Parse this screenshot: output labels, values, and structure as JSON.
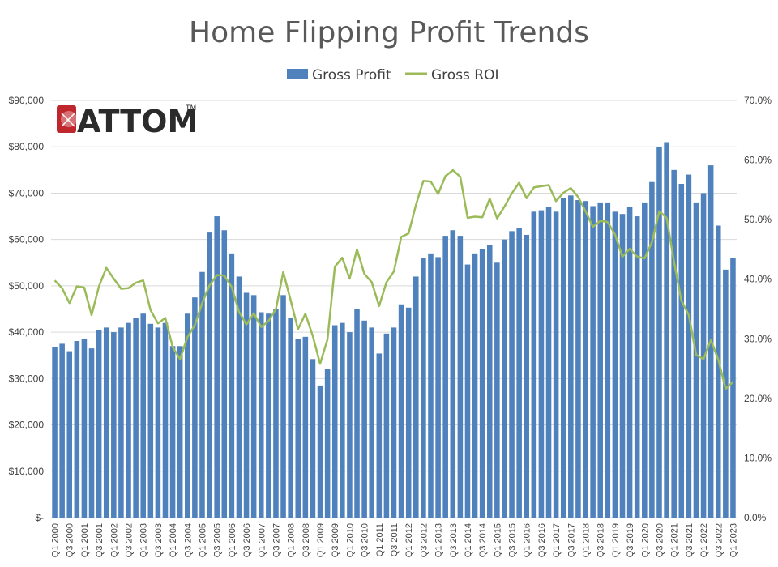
{
  "logo": {
    "text": "ATTOM",
    "tm": "TM",
    "accent_color": "#c0272d"
  },
  "chart_data": {
    "type": "bar",
    "title": "Home Flipping  Profit Trends",
    "legend_position": "top",
    "grid": true,
    "x": [
      "Q1 2000",
      "Q2 2000",
      "Q3 2000",
      "Q4 2000",
      "Q1 2001",
      "Q2 2001",
      "Q3 2001",
      "Q4 2001",
      "Q1 2002",
      "Q2 2002",
      "Q3 2002",
      "Q4 2002",
      "Q1 2003",
      "Q2 2003",
      "Q3 2003",
      "Q4 2003",
      "Q1 2004",
      "Q2 2004",
      "Q3 2004",
      "Q4 2004",
      "Q1 2005",
      "Q2 2005",
      "Q3 2005",
      "Q4 2005",
      "Q1 2006",
      "Q2 2006",
      "Q3 2006",
      "Q4 2006",
      "Q1 2007",
      "Q2 2007",
      "Q3 2007",
      "Q4 2007",
      "Q1 2008",
      "Q2 2008",
      "Q3 2008",
      "Q4 2008",
      "Q1 2009",
      "Q2 2009",
      "Q3 2009",
      "Q4 2009",
      "Q1 2010",
      "Q2 2010",
      "Q3 2010",
      "Q4 2010",
      "Q1 2011",
      "Q2 2011",
      "Q3 2011",
      "Q4 2011",
      "Q1 2012",
      "Q2 2012",
      "Q3 2012",
      "Q4 2012",
      "Q1 2013",
      "Q2 2013",
      "Q3 2013",
      "Q4 2013",
      "Q1 2014",
      "Q2 2014",
      "Q3 2014",
      "Q4 2014",
      "Q1 2015",
      "Q2 2015",
      "Q3 2015",
      "Q4 2015",
      "Q1 2016",
      "Q2 2016",
      "Q3 2016",
      "Q4 2016",
      "Q1 2017",
      "Q2 2017",
      "Q3 2017",
      "Q4 2017",
      "Q1 2018",
      "Q2 2018",
      "Q3 2018",
      "Q4 2018",
      "Q1 2019",
      "Q2 2019",
      "Q3 2019",
      "Q4 2019",
      "Q1 2020",
      "Q2 2020",
      "Q3 2020",
      "Q4 2020",
      "Q1 2021",
      "Q2 2021",
      "Q3 2021",
      "Q4 2021",
      "Q1 2022",
      "Q2 2022",
      "Q3 2022",
      "Q4 2022",
      "Q1 2023"
    ],
    "x_tick_labels": [
      "Q1 2000",
      "Q3 2000",
      "Q1 2001",
      "Q3 2001",
      "Q1 2002",
      "Q3 2002",
      "Q1 2003",
      "Q3 2003",
      "Q1 2004",
      "Q3 2004",
      "Q1 2005",
      "Q3 2005",
      "Q1 2006",
      "Q3 2006",
      "Q1 2007",
      "Q3 2007",
      "Q1 2008",
      "Q3 2008",
      "Q1 2009",
      "Q3 2009",
      "Q1 2010",
      "Q3 2010",
      "Q1 2011",
      "Q3 2011",
      "Q1 2012",
      "Q3 2012",
      "Q1 2013",
      "Q3 2013",
      "Q1 2014",
      "Q3 2014",
      "Q1 2015",
      "Q3 2015",
      "Q1 2016",
      "Q3 2016",
      "Q1 2017",
      "Q3 2017",
      "Q1 2018",
      "Q3 2018",
      "Q1 2019",
      "Q3 2019",
      "Q1 2020",
      "Q3 2020",
      "Q1 2021",
      "Q3 2021",
      "Q1 2022",
      "Q3 2022",
      "Q1 2023"
    ],
    "y_left": {
      "range": [
        0,
        90000
      ],
      "ticks": [
        "$-",
        "$10,000",
        "$20,000",
        "$30,000",
        "$40,000",
        "$50,000",
        "$60,000",
        "$70,000",
        "$80,000",
        "$90,000"
      ]
    },
    "y_right": {
      "range": [
        0,
        70
      ],
      "ticks": [
        "0.0%",
        "10.0%",
        "20.0%",
        "30.0%",
        "40.0%",
        "50.0%",
        "60.0%",
        "70.0%"
      ]
    },
    "series": [
      {
        "name": "Gross Profit",
        "type": "bar",
        "axis": "left",
        "color": "#4f81bd",
        "values": [
          36800,
          37500,
          35900,
          38100,
          38600,
          36500,
          40500,
          41000,
          40000,
          41000,
          42000,
          43000,
          44000,
          41800,
          41000,
          42000,
          37000,
          37000,
          44000,
          47500,
          53000,
          61500,
          65000,
          62000,
          57000,
          52000,
          48500,
          48000,
          44300,
          44000,
          45000,
          48000,
          43000,
          38500,
          39000,
          34200,
          28500,
          32000,
          41500,
          42000,
          40000,
          45000,
          42500,
          41000,
          35400,
          39700,
          41000,
          46000,
          45300,
          52000,
          56000,
          57000,
          56200,
          60800,
          62000,
          60800,
          54600,
          57000,
          58000,
          58800,
          55000,
          60000,
          61800,
          62500,
          61000,
          66000,
          66300,
          67000,
          66000,
          69000,
          69500,
          68500,
          68300,
          67200,
          68000,
          68000,
          66000,
          65500,
          67000,
          65000,
          68000,
          72400,
          80000,
          81000,
          75000,
          72000,
          74000,
          68000,
          70000,
          76000,
          63000,
          53500,
          56000
        ]
      },
      {
        "name": "Gross ROI",
        "type": "line",
        "axis": "right",
        "color": "#9bbb59",
        "values": [
          39.8,
          38.5,
          36.0,
          38.8,
          38.6,
          34.0,
          38.8,
          41.9,
          40.1,
          38.4,
          38.5,
          39.4,
          39.8,
          34.8,
          32.6,
          33.5,
          28.6,
          26.6,
          30.3,
          32.3,
          36.0,
          39.0,
          40.7,
          40.6,
          38.7,
          34.5,
          32.4,
          34.3,
          32.0,
          33.0,
          35.0,
          41.2,
          36.5,
          31.6,
          34.2,
          30.5,
          25.8,
          29.9,
          42.1,
          43.6,
          40.1,
          45.0,
          40.9,
          39.5,
          35.5,
          39.5,
          41.3,
          47.1,
          47.7,
          52.5,
          56.5,
          56.4,
          54.3,
          57.3,
          58.3,
          57.2,
          50.3,
          50.5,
          50.4,
          53.5,
          50.2,
          52.2,
          54.4,
          56.2,
          53.6,
          55.4,
          55.6,
          55.8,
          53.1,
          54.5,
          55.3,
          53.8,
          51.4,
          48.8,
          49.8,
          49.6,
          47.5,
          43.8,
          45.1,
          43.8,
          43.5,
          46.2,
          51.4,
          50.3,
          42.9,
          36.4,
          34.0,
          27.3,
          26.6,
          29.8,
          26.5,
          21.6,
          22.8
        ]
      }
    ]
  }
}
